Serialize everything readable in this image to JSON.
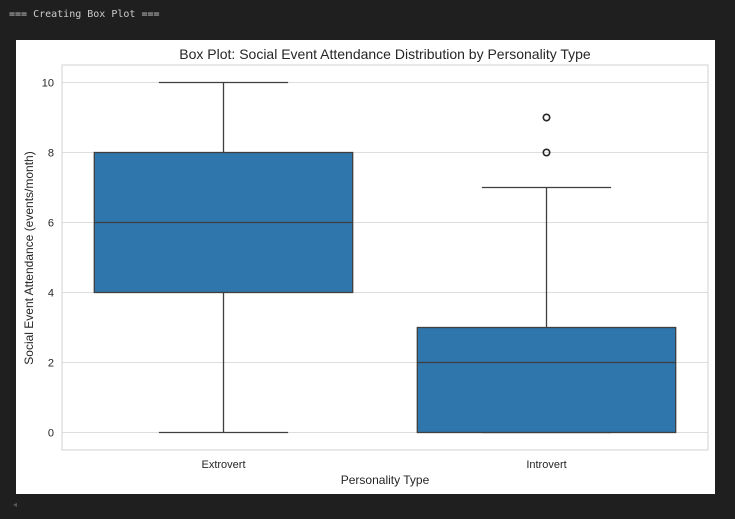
{
  "console": {
    "output_line": "=== Creating Box Plot ==="
  },
  "chart_data": {
    "type": "box",
    "title": "Box Plot: Social Event Attendance Distribution by Personality Type",
    "xlabel": "Personality Type",
    "ylabel": "Social Event Attendance (events/month)",
    "ylim": [
      -0.5,
      10.5
    ],
    "yticks": [
      0,
      2,
      4,
      6,
      8,
      10
    ],
    "grid": true,
    "box_color": "#2e76ac",
    "line_color": "#3f3f3f",
    "categories": [
      "Extrovert",
      "Introvert"
    ],
    "boxes": [
      {
        "category": "Extrovert",
        "whisker_low": 0,
        "q1": 4,
        "median": 6,
        "q3": 8,
        "whisker_high": 10,
        "outliers": []
      },
      {
        "category": "Introvert",
        "whisker_low": 0,
        "q1": 0,
        "median": 2,
        "q3": 3,
        "whisker_high": 7,
        "outliers": [
          8,
          9
        ]
      }
    ]
  },
  "ui": {
    "scroll_left_icon": "◂"
  }
}
